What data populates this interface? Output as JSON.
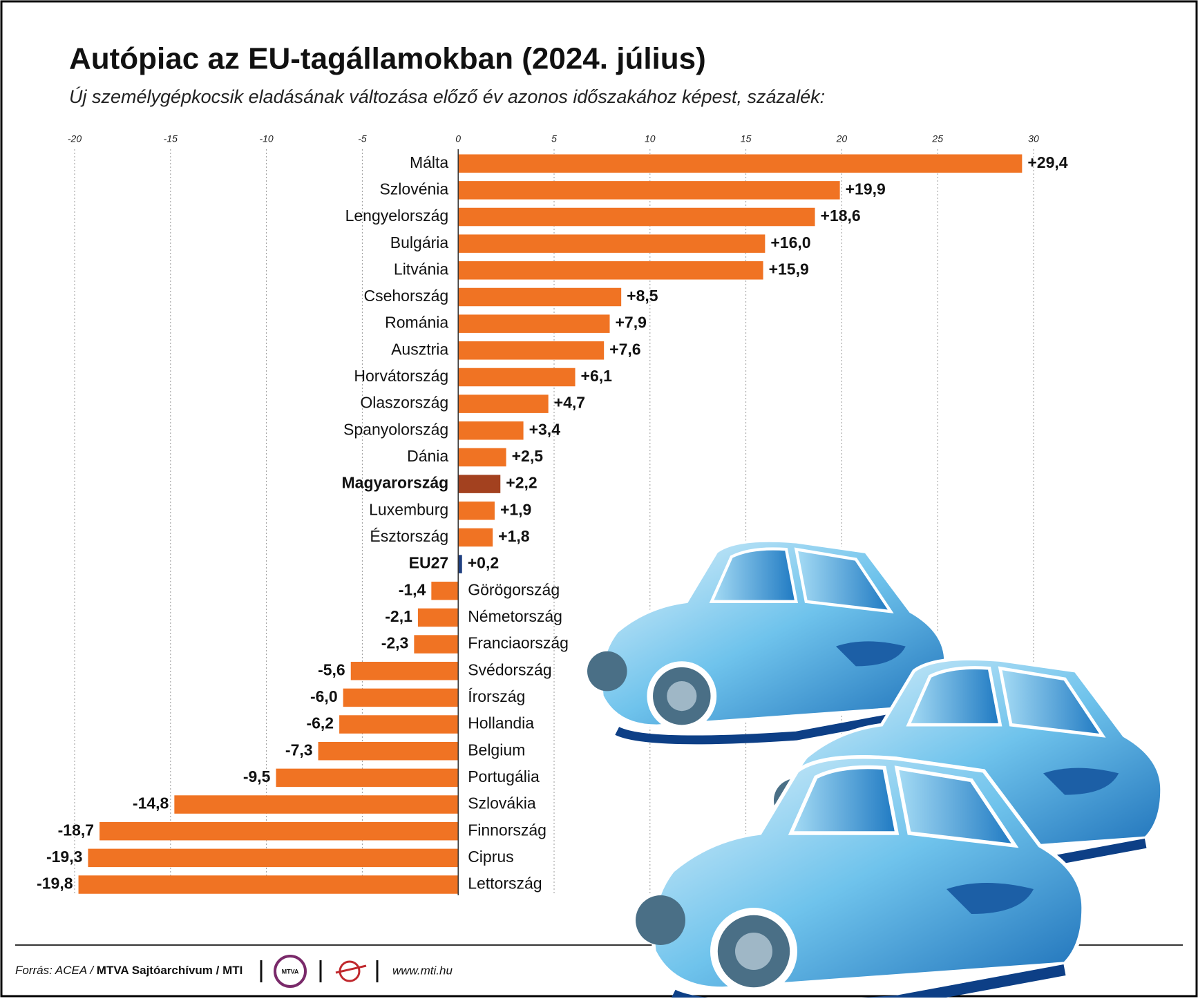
{
  "chart_data": {
    "type": "barh",
    "title": "Autópiac az EU-tagállamokban (2024. július)",
    "subtitle": "Új személygépkocsik eladásának változása előző év azonos időszakához képest, százalék:",
    "categories": [
      "Málta",
      "Szlovénia",
      "Lengyelország",
      "Bulgária",
      "Litvánia",
      "Csehország",
      "Románia",
      "Ausztria",
      "Horvátország",
      "Olaszország",
      "Spanyolország",
      "Dánia",
      "Magyarország",
      "Luxemburg",
      "Észtország",
      "EU27",
      "Görögország",
      "Németország",
      "Franciaország",
      "Svédország",
      "Írország",
      "Hollandia",
      "Belgium",
      "Portugália",
      "Szlovákia",
      "Finnország",
      "Ciprus",
      "Lettország"
    ],
    "values": [
      29.4,
      19.9,
      18.6,
      16.0,
      15.9,
      8.5,
      7.9,
      7.6,
      6.1,
      4.7,
      3.4,
      2.5,
      2.2,
      1.9,
      1.8,
      0.2,
      -1.4,
      -2.1,
      -2.3,
      -5.6,
      -6.0,
      -6.2,
      -7.3,
      -9.5,
      -14.8,
      -18.7,
      -19.3,
      -19.8
    ],
    "value_labels": [
      "+29,4",
      "+19,9",
      "+18,6",
      "+16,0",
      "+15,9",
      "+8,5",
      "+7,9",
      "+7,6",
      "+6,1",
      "+4,7",
      "+3,4",
      "+2,5",
      "+2,2",
      "+1,9",
      "+1,8",
      "+0,2",
      "-1,4",
      "-2,1",
      "-2,3",
      "-5,6",
      "-6,0",
      "-6,2",
      "-7,3",
      "-9,5",
      "-14,8",
      "-18,7",
      "-19,3",
      "-19,8"
    ],
    "color": "#f07323",
    "bar_colors": [
      "#f07323",
      "#f07323",
      "#f07323",
      "#f07323",
      "#f07323",
      "#f07323",
      "#f07323",
      "#f07323",
      "#f07323",
      "#f07323",
      "#f07323",
      "#f07323",
      "#a3411f",
      "#f07323",
      "#f07323",
      "#1f3f80",
      "#f07323",
      "#f07323",
      "#f07323",
      "#f07323",
      "#f07323",
      "#f07323",
      "#f07323",
      "#f07323",
      "#f07323",
      "#f07323",
      "#f07323",
      "#f07323"
    ],
    "xlim": [
      -20,
      30
    ],
    "xticks": [
      -20,
      -15,
      -10,
      -5,
      0,
      5,
      10,
      15,
      20,
      25,
      30
    ],
    "grid": true,
    "source": [
      "Forrás: ACEA /",
      "MTVA Sajtóarchívum / MTI"
    ],
    "logo": "MTVA",
    "website": "www.mti.hu"
  }
}
